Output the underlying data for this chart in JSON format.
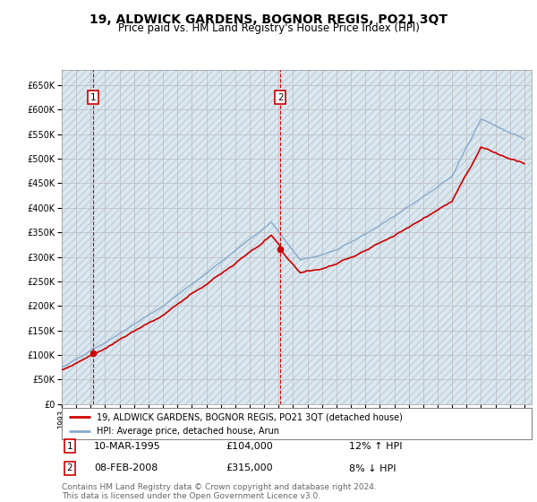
{
  "title": "19, ALDWICK GARDENS, BOGNOR REGIS, PO21 3QT",
  "subtitle": "Price paid vs. HM Land Registry's House Price Index (HPI)",
  "title_fontsize": 10,
  "subtitle_fontsize": 8.5,
  "ytick_vals": [
    0,
    50000,
    100000,
    150000,
    200000,
    250000,
    300000,
    350000,
    400000,
    450000,
    500000,
    550000,
    600000,
    650000
  ],
  "ylim": [
    0,
    680000
  ],
  "sale1_date": "10-MAR-1995",
  "sale1_price": 104000,
  "sale1_hpi_pct": "12% ↑ HPI",
  "sale2_date": "08-FEB-2008",
  "sale2_price": 315000,
  "sale2_hpi_pct": "8% ↓ HPI",
  "sale1_x": 1995.19,
  "sale2_x": 2008.11,
  "legend_line1": "19, ALDWICK GARDENS, BOGNOR REGIS, PO21 3QT (detached house)",
  "legend_line2": "HPI: Average price, detached house, Arun",
  "price_line_color": "#cc0000",
  "hpi_line_color": "#88aacc",
  "annotation_box_color": "#cc0000",
  "grid_color": "#bbbbbb",
  "bg_color": "#dce8f0",
  "footer": "Contains HM Land Registry data © Crown copyright and database right 2024.\nThis data is licensed under the Open Government Licence v3.0.",
  "footer_fontsize": 6.5
}
